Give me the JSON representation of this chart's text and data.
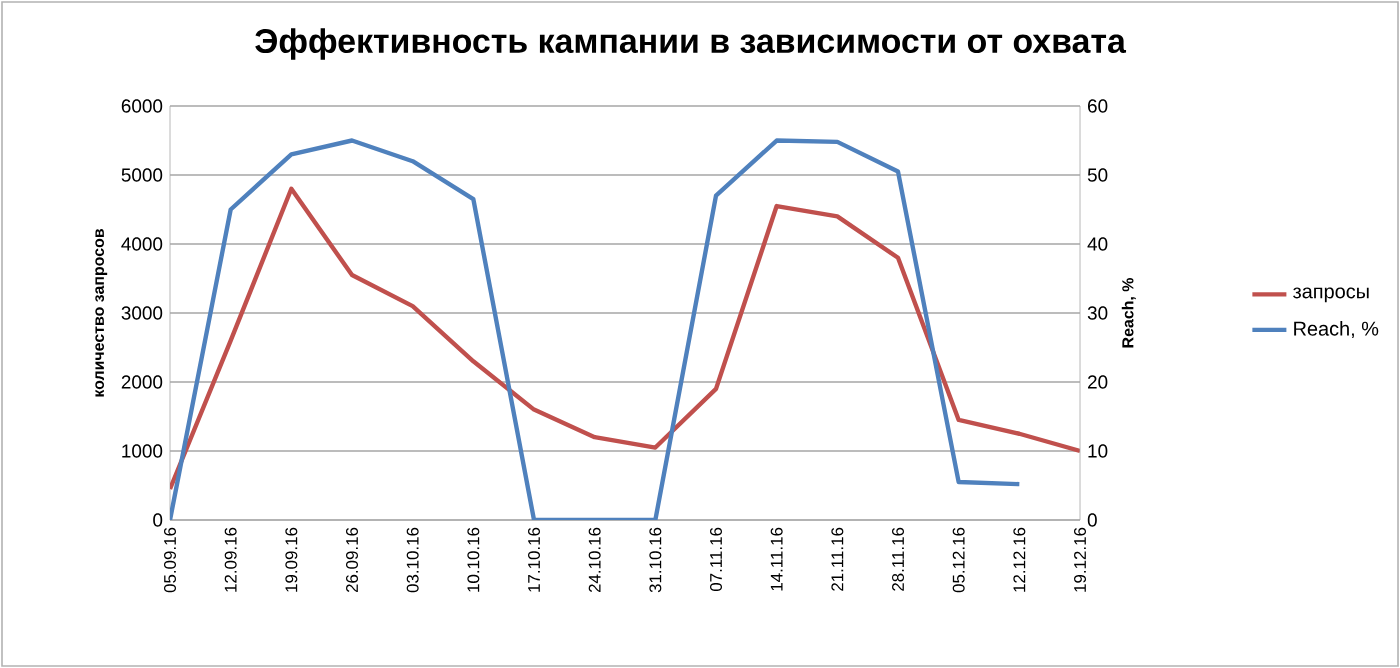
{
  "chart_data": {
    "type": "line",
    "title": "Эффективность кампании в зависимости от охвата",
    "ylabel": "количество запросов",
    "y2label": "Reach, %",
    "categories": [
      "05.09.16",
      "12.09.16",
      "19.09.16",
      "26.09.16",
      "03.10.16",
      "10.10.16",
      "17.10.16",
      "24.10.16",
      "31.10.16",
      "07.11.16",
      "14.11.16",
      "21.11.16",
      "28.11.16",
      "05.12.16",
      "12.12.16",
      "19.12.16"
    ],
    "series": [
      {
        "name": "запросы",
        "color": "#c0504d",
        "values": [
          450,
          2600,
          4800,
          3550,
          3100,
          2300,
          1600,
          1200,
          1050,
          1900,
          4550,
          4400,
          3800,
          1450,
          1250,
          1000
        ]
      },
      {
        "name": "Reach, %",
        "color": "#4f81bd",
        "axis": "y2",
        "values": [
          0,
          45,
          53,
          55,
          52,
          46.5,
          0,
          0,
          0,
          47,
          55,
          54.8,
          50.5,
          5.5,
          5.2,
          null
        ]
      }
    ],
    "ylim": [
      0,
      6000
    ],
    "yticks": [
      0,
      1000,
      2000,
      3000,
      4000,
      5000,
      6000
    ],
    "y2lim": [
      0,
      60
    ],
    "y2ticks": [
      0,
      10,
      20,
      30,
      40,
      50,
      60
    ],
    "grid": "y",
    "legend": "right",
    "marker": "none",
    "line_style": "solid"
  }
}
